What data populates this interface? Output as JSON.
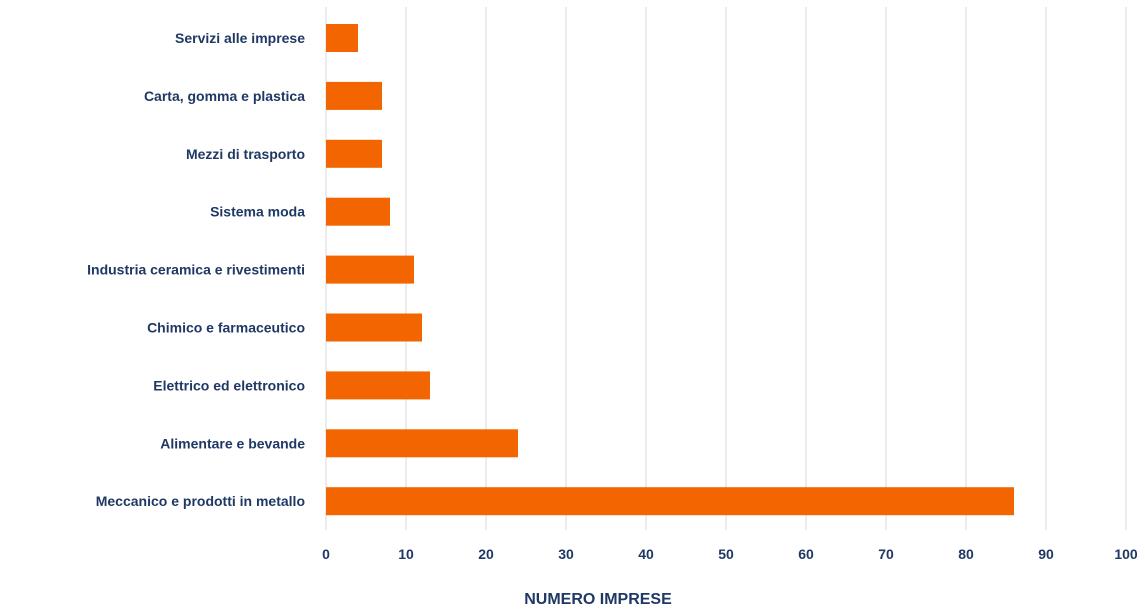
{
  "chart_data": {
    "type": "bar",
    "orientation": "horizontal",
    "categories": [
      "Servizi alle imprese",
      "Carta, gomma e plastica",
      "Mezzi di trasporto",
      "Sistema moda",
      "Industria ceramica e rivestimenti",
      "Chimico e farmaceutico",
      "Elettrico ed elettronico",
      "Alimentare e bevande",
      "Meccanico e prodotti in metallo"
    ],
    "values": [
      4,
      7,
      7,
      8,
      11,
      12,
      13,
      24,
      86
    ],
    "title": "",
    "xlabel": "NUMERO IMPRESE",
    "ylabel": "",
    "xlim": [
      0,
      100
    ],
    "xticks": [
      0,
      10,
      20,
      30,
      40,
      50,
      60,
      70,
      80,
      90,
      100
    ],
    "grid": "vertical",
    "bar_color": "#f26500",
    "text_color": "#1f3864",
    "grid_color": "#d9d9d9"
  }
}
